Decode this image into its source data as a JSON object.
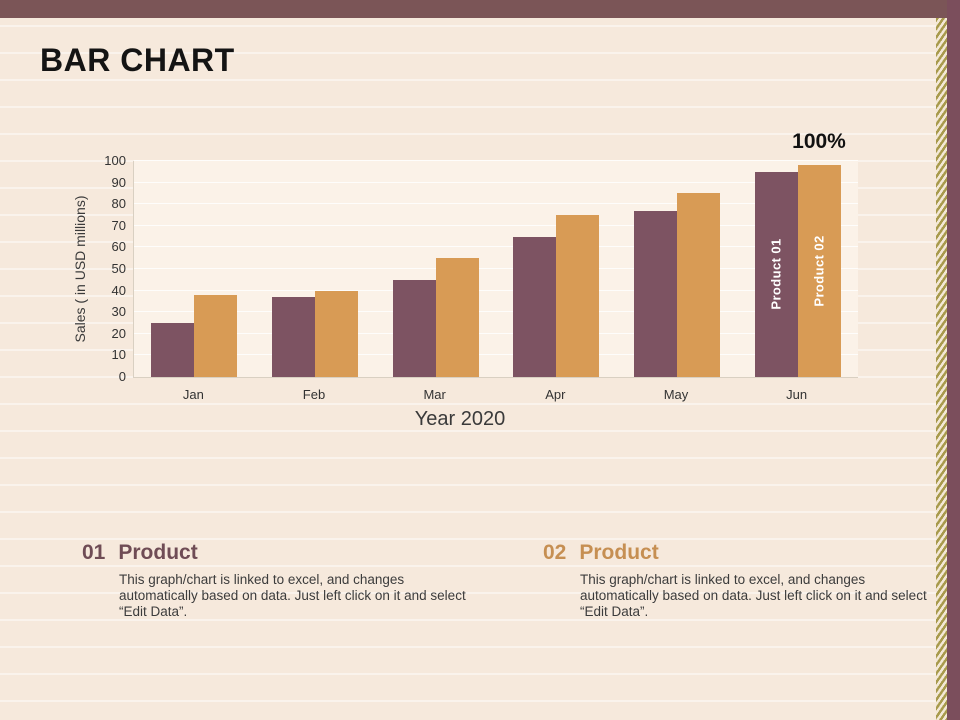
{
  "slide": {
    "title": "BAR CHART",
    "colors": {
      "background": "#f6e9dc",
      "plot_background": "#fbf2e8",
      "top_bar": "#7b5557",
      "right_edge": "#7b4e5c",
      "gold_stripe": "#a89a4c",
      "series1": "#7d5362",
      "series2": "#d89b55",
      "heading1": "#6f4c55",
      "heading2": "#c68f52"
    }
  },
  "chart_data": {
    "type": "bar",
    "categories": [
      "Jan",
      "Feb",
      "Mar",
      "Apr",
      "May",
      "Jun"
    ],
    "series": [
      {
        "name": "Product 01",
        "color": "#7d5362",
        "values": [
          25,
          37,
          45,
          65,
          77,
          95
        ]
      },
      {
        "name": "Product 02",
        "color": "#d89b55",
        "values": [
          38,
          40,
          55,
          75,
          85,
          98
        ]
      }
    ],
    "title": "",
    "xlabel": "Year 2020",
    "ylabel": "Sales ( in USD millions)",
    "ylim": [
      0,
      100
    ],
    "ytick_step": 10,
    "grid": true,
    "legend_position": "inside-last-bars",
    "annotation": "100%"
  },
  "products": [
    {
      "number": "01",
      "heading": "Product",
      "body": "This graph/chart is linked to excel, and changes automatically based on data. Just left click on it and select “Edit Data”.",
      "color": "#6f4c55"
    },
    {
      "number": "02",
      "heading": "Product",
      "body": "This graph/chart is linked to excel, and changes automatically based on data. Just left click on it and select “Edit Data”.",
      "color": "#c68f52"
    }
  ]
}
